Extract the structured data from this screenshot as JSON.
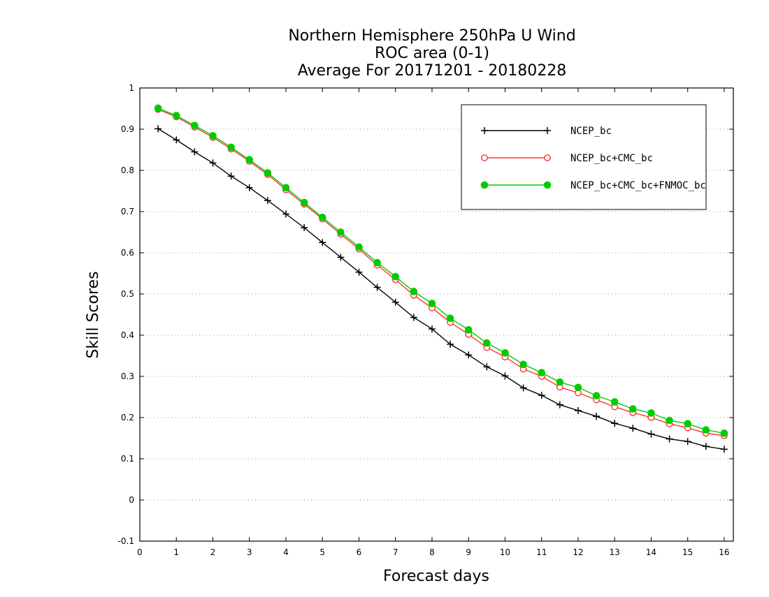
{
  "chart_data": {
    "type": "line",
    "title": [
      "Northern Hemisphere 250hPa U Wind",
      "ROC area (0-1)",
      "Average For 20171201 - 20180228"
    ],
    "xlabel": "Forecast days",
    "ylabel": "Skill Scores",
    "xlim": [
      0,
      16.25
    ],
    "ylim": [
      -0.1,
      1
    ],
    "xticks": [
      0,
      1,
      2,
      3,
      4,
      5,
      6,
      7,
      8,
      9,
      10,
      11,
      12,
      13,
      14,
      15,
      16
    ],
    "xtick_labels": [
      "0",
      "1",
      "2",
      "3",
      "4",
      "5",
      "6",
      "7",
      "8",
      "9",
      "10",
      "11",
      "12",
      "13",
      "14",
      "15",
      "16"
    ],
    "yticks": [
      -0.1,
      0,
      0.1,
      0.2,
      0.3,
      0.4,
      0.5,
      0.6,
      0.7,
      0.8,
      0.9,
      1
    ],
    "ytick_labels": [
      "-0.1",
      "0",
      "0.1",
      "0.2",
      "0.3",
      "0.4",
      "0.5",
      "0.6",
      "0.7",
      "0.8",
      "0.9",
      "1"
    ],
    "grid": "horizontal dotted",
    "legend_position": "top-right",
    "x": [
      0.5,
      1,
      1.5,
      2,
      2.5,
      3,
      3.5,
      4,
      4.5,
      5,
      5.5,
      6,
      6.5,
      7,
      7.5,
      8,
      8.5,
      9,
      9.5,
      10,
      10.5,
      11,
      11.5,
      12,
      12.5,
      13,
      13.5,
      14,
      14.5,
      15,
      15.5,
      16
    ],
    "series": [
      {
        "name": "NCEP_bc",
        "color": "#000000",
        "marker": "plus",
        "values": [
          0.901,
          0.874,
          0.845,
          0.818,
          0.786,
          0.758,
          0.727,
          0.694,
          0.661,
          0.625,
          0.589,
          0.553,
          0.516,
          0.48,
          0.443,
          0.415,
          0.378,
          0.352,
          0.323,
          0.301,
          0.272,
          0.254,
          0.231,
          0.217,
          0.203,
          0.186,
          0.174,
          0.16,
          0.148,
          0.142,
          0.13,
          0.123
        ]
      },
      {
        "name": "NCEP_bc+CMC_bc",
        "color": "#ff3333",
        "marker": "open-circle",
        "values": [
          0.948,
          0.93,
          0.905,
          0.88,
          0.852,
          0.822,
          0.79,
          0.753,
          0.718,
          0.682,
          0.645,
          0.609,
          0.57,
          0.535,
          0.497,
          0.466,
          0.431,
          0.402,
          0.37,
          0.347,
          0.318,
          0.3,
          0.274,
          0.26,
          0.243,
          0.226,
          0.212,
          0.2,
          0.185,
          0.175,
          0.162,
          0.156
        ]
      },
      {
        "name": "NCEP_bc+CMC_bc+FNMOC_bc",
        "color": "#00cc00",
        "marker": "filled-circle",
        "values": [
          0.951,
          0.933,
          0.909,
          0.884,
          0.856,
          0.826,
          0.794,
          0.758,
          0.722,
          0.686,
          0.65,
          0.614,
          0.576,
          0.542,
          0.506,
          0.477,
          0.441,
          0.413,
          0.381,
          0.357,
          0.329,
          0.309,
          0.286,
          0.273,
          0.253,
          0.238,
          0.221,
          0.211,
          0.193,
          0.185,
          0.17,
          0.162
        ]
      }
    ]
  }
}
